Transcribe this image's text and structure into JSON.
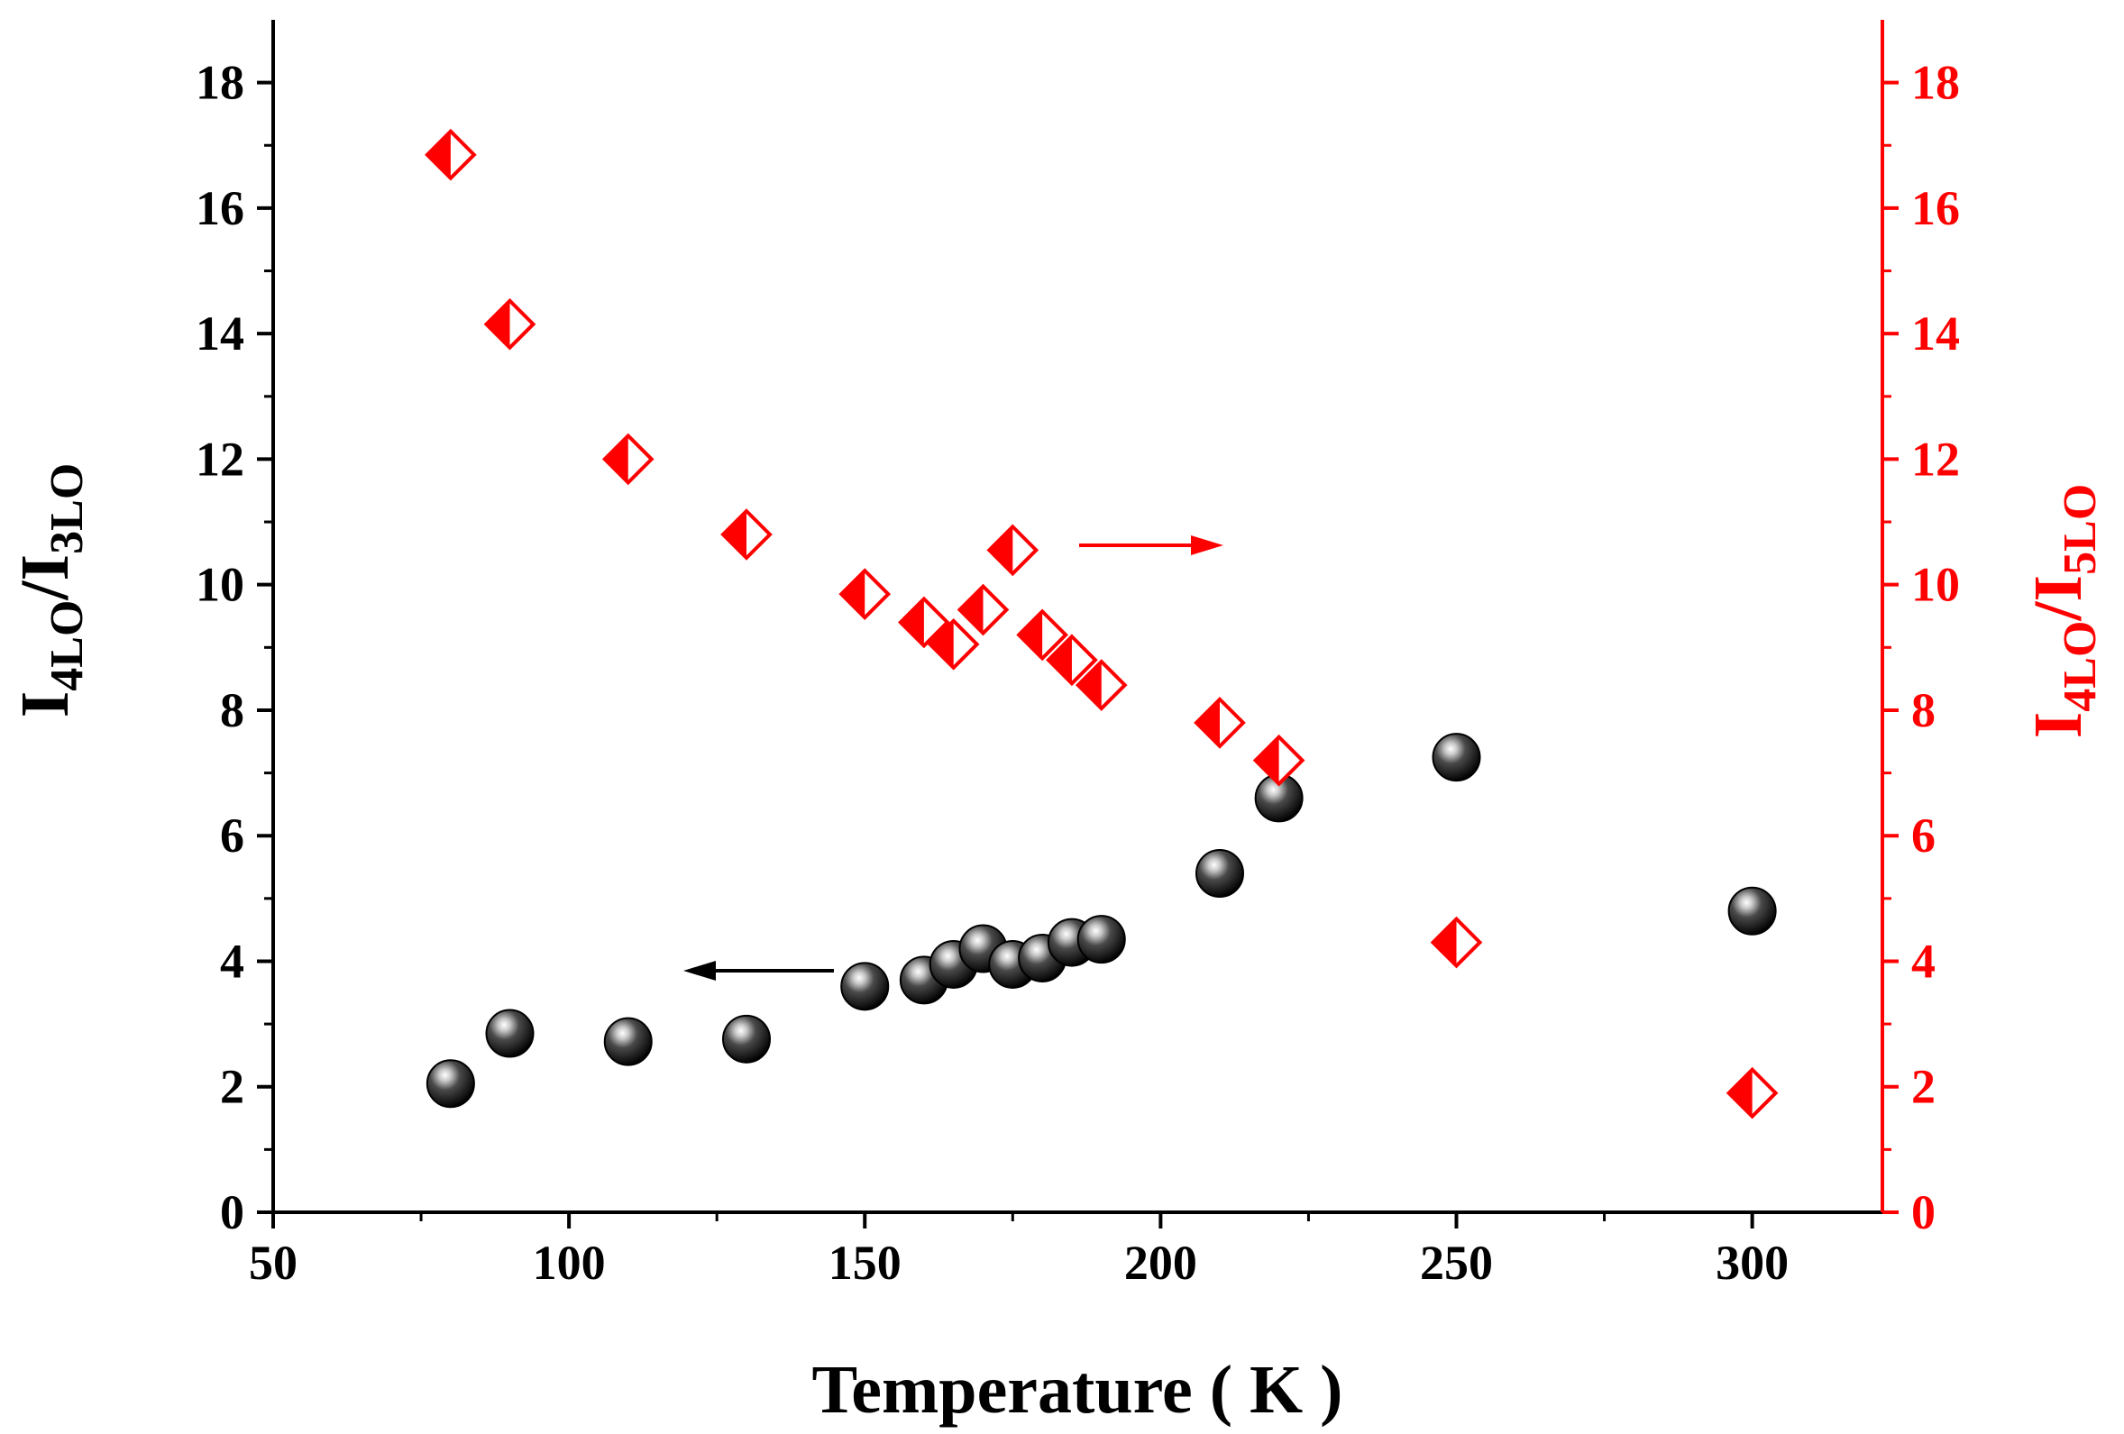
{
  "chart_data": {
    "type": "scatter",
    "title": "",
    "xlabel": "Temperature ( K )",
    "ylabel_left": {
      "base": "I",
      "sub1": "4LO",
      "sep": "/I",
      "sub2": "3LO"
    },
    "ylabel_right": {
      "base": "I",
      "sub1": "4LO",
      "sep": "/I",
      "sub2": "5LO"
    },
    "xlim": [
      50,
      322
    ],
    "ylim_left": [
      0,
      19
    ],
    "ylim_right": [
      0,
      19
    ],
    "x_ticks": [
      50,
      100,
      150,
      200,
      250,
      300
    ],
    "y_ticks": [
      0,
      2,
      4,
      6,
      8,
      10,
      12,
      14,
      16,
      18
    ],
    "series": [
      {
        "name": "I4LO/I3LO",
        "axis": "left",
        "marker": "sphere",
        "color": "#000000",
        "x": [
          80,
          90,
          110,
          130,
          150,
          160,
          165,
          170,
          175,
          180,
          185,
          190,
          210,
          220,
          250,
          300
        ],
        "y": [
          2.05,
          2.85,
          2.72,
          2.76,
          3.6,
          3.7,
          3.95,
          4.2,
          3.95,
          4.05,
          4.3,
          4.35,
          5.4,
          6.6,
          7.25,
          4.8
        ]
      },
      {
        "name": "I4LO/I5LO",
        "axis": "right",
        "marker": "half-filled-diamond",
        "color": "#ff0000",
        "x": [
          80,
          90,
          110,
          130,
          150,
          160,
          165,
          170,
          175,
          180,
          185,
          190,
          210,
          220,
          250,
          300
        ],
        "y": [
          16.85,
          14.15,
          12.0,
          10.8,
          9.85,
          9.4,
          9.05,
          9.6,
          10.55,
          9.2,
          8.8,
          8.4,
          7.8,
          7.2,
          4.3,
          1.9
        ]
      }
    ],
    "annotations": [
      {
        "type": "arrow",
        "direction": "left",
        "points_to_axis": "left",
        "color": "#000000"
      },
      {
        "type": "arrow",
        "direction": "right",
        "points_to_axis": "right",
        "color": "#ff0000"
      }
    ]
  }
}
